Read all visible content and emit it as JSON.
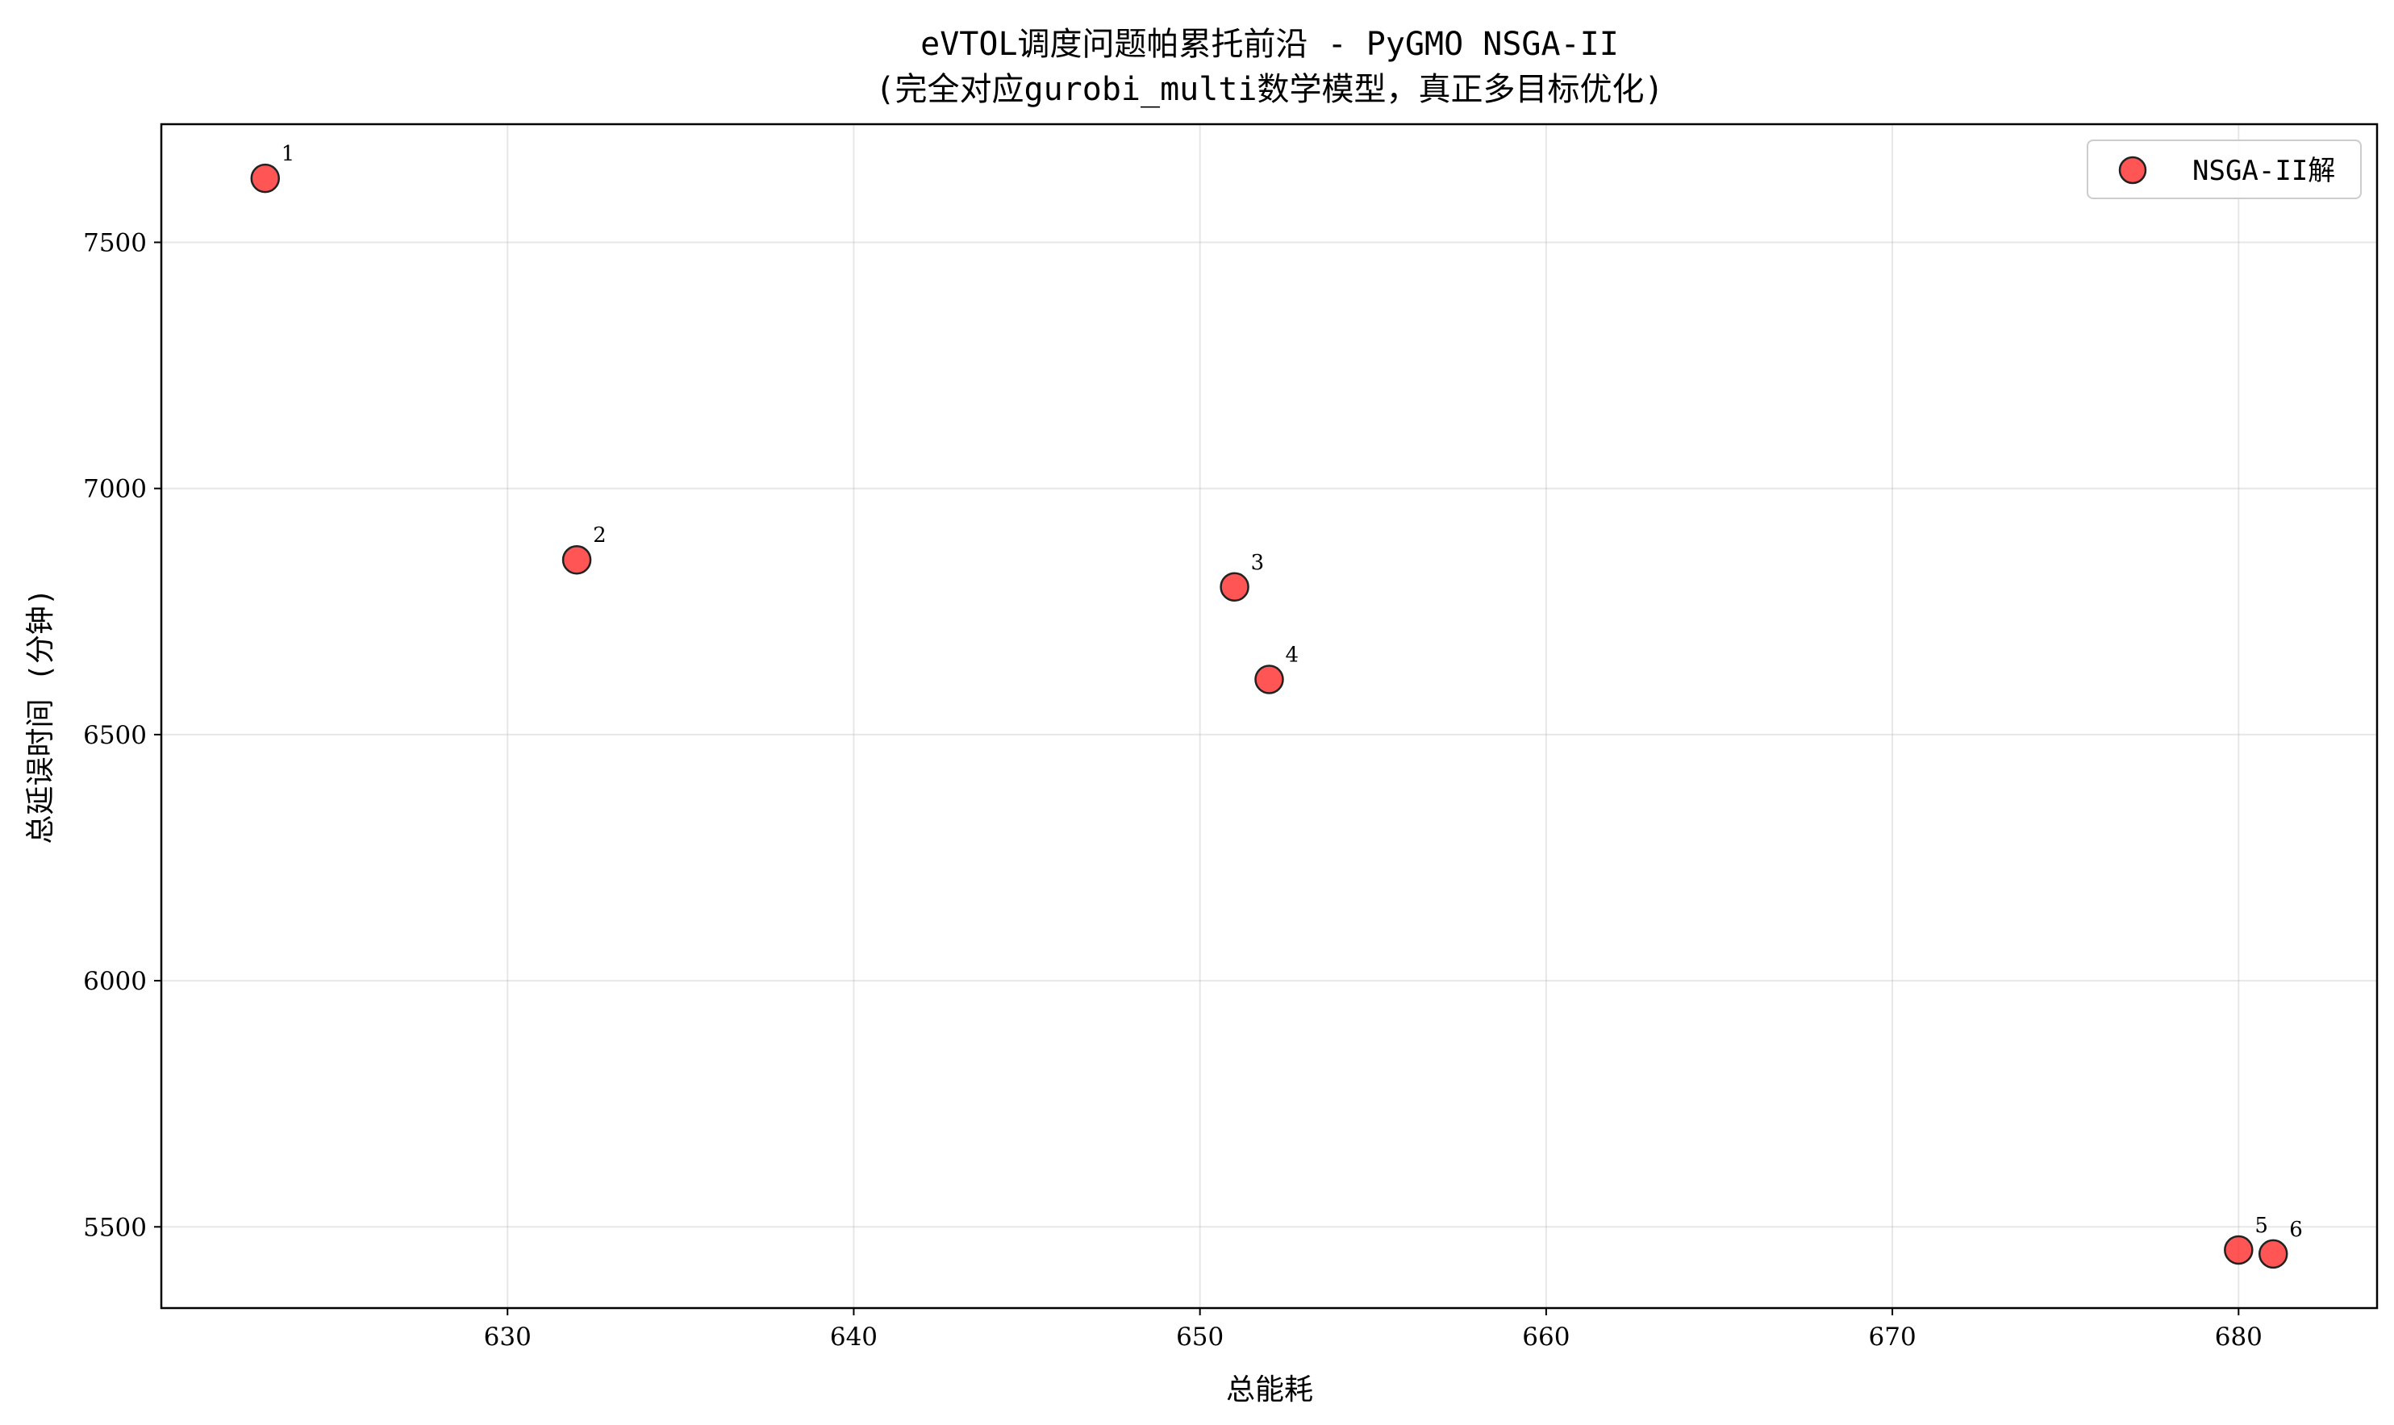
{
  "chart_data": {
    "type": "scatter",
    "title": "eVTOL调度问题帕累托前沿 - PyGMO NSGA-II",
    "subtitle": "(完全对应gurobi_multi数学模型，真正多目标优化)",
    "xlabel": "总能耗",
    "ylabel": "总延误时间 (分钟)",
    "xlim": [
      620,
      684
    ],
    "ylim": [
      5335,
      7740
    ],
    "xticks": [
      630,
      640,
      650,
      660,
      670,
      680
    ],
    "yticks": [
      5500,
      6000,
      6500,
      7000,
      7500
    ],
    "grid": true,
    "legend_position": "top-right",
    "series": [
      {
        "name": "NSGA-II解",
        "color": "#ff2a2a",
        "points": [
          {
            "x": 623,
            "y": 7630,
            "label": "1"
          },
          {
            "x": 632,
            "y": 6855,
            "label": "2"
          },
          {
            "x": 651,
            "y": 6800,
            "label": "3"
          },
          {
            "x": 652,
            "y": 6612,
            "label": "4"
          },
          {
            "x": 680,
            "y": 5453,
            "label": "5"
          },
          {
            "x": 681,
            "y": 5445,
            "label": "6"
          }
        ]
      }
    ]
  }
}
